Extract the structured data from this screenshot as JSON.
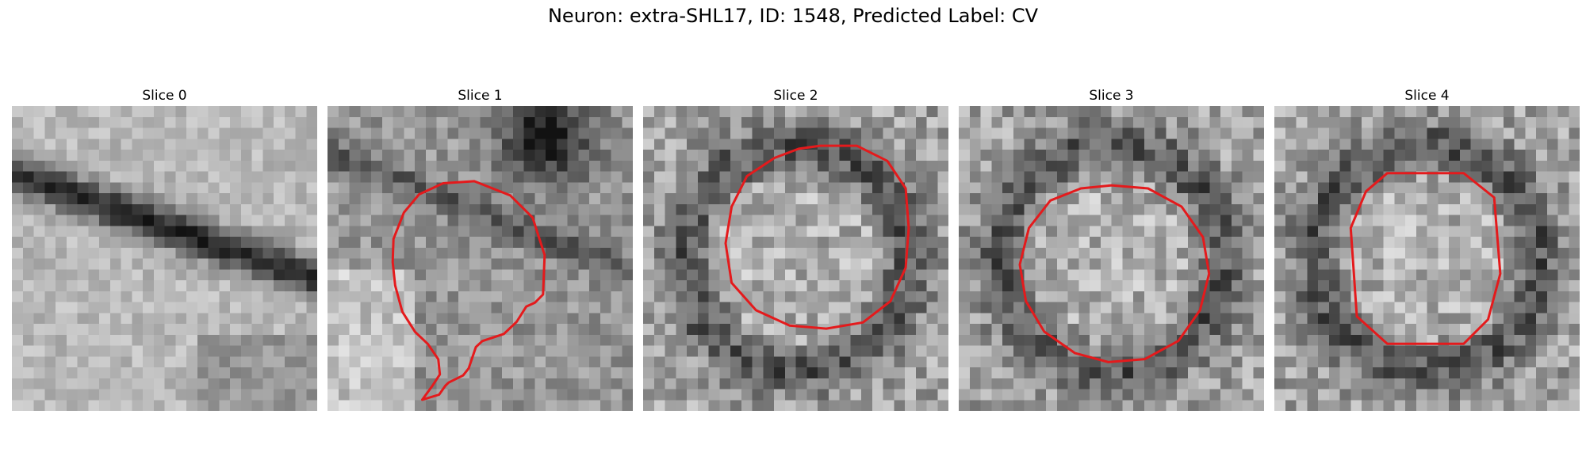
{
  "figure": {
    "title": "Neuron: extra-SHL17, ID: 1548, Predicted Label: CV"
  },
  "colors": {
    "contour": "#e41a1c",
    "background": "#ffffff"
  },
  "panels": [
    {
      "title": "Slice 0",
      "texture": "membrane-diagonal",
      "contour": []
    },
    {
      "title": "Slice 1",
      "texture": "textured-dark-top",
      "contour": [
        [
          0.236,
          0.451
        ],
        [
          0.257,
          0.446
        ],
        [
          0.265,
          0.437
        ],
        [
          0.269,
          0.434
        ],
        [
          0.287,
          0.427
        ],
        [
          0.294,
          0.42
        ],
        [
          0.303,
          0.399
        ],
        [
          0.311,
          0.393
        ],
        [
          0.338,
          0.386
        ],
        [
          0.354,
          0.374
        ],
        [
          0.366,
          0.359
        ],
        [
          0.377,
          0.355
        ],
        [
          0.387,
          0.347
        ],
        [
          0.389,
          0.308
        ],
        [
          0.374,
          0.271
        ],
        [
          0.346,
          0.249
        ],
        [
          0.301,
          0.235
        ],
        [
          0.262,
          0.237
        ],
        [
          0.232,
          0.248
        ],
        [
          0.213,
          0.266
        ],
        [
          0.2,
          0.292
        ],
        [
          0.199,
          0.315
        ],
        [
          0.202,
          0.338
        ],
        [
          0.211,
          0.364
        ],
        [
          0.227,
          0.384
        ],
        [
          0.243,
          0.396
        ],
        [
          0.256,
          0.411
        ],
        [
          0.258,
          0.426
        ],
        [
          0.248,
          0.438
        ]
      ]
    },
    {
      "title": "Slice 2",
      "texture": "granular-ring",
      "contour": [
        [
          0.58,
          0.13
        ],
        [
          0.7,
          0.13
        ],
        [
          0.8,
          0.18
        ],
        [
          0.86,
          0.27
        ],
        [
          0.87,
          0.4
        ],
        [
          0.86,
          0.53
        ],
        [
          0.81,
          0.64
        ],
        [
          0.72,
          0.71
        ],
        [
          0.6,
          0.73
        ],
        [
          0.48,
          0.72
        ],
        [
          0.37,
          0.67
        ],
        [
          0.29,
          0.58
        ],
        [
          0.27,
          0.45
        ],
        [
          0.29,
          0.33
        ],
        [
          0.34,
          0.23
        ],
        [
          0.43,
          0.17
        ],
        [
          0.51,
          0.14
        ]
      ]
    },
    {
      "title": "Slice 3",
      "texture": "granular-ring",
      "contour": [
        [
          0.5,
          0.26
        ],
        [
          0.62,
          0.27
        ],
        [
          0.73,
          0.33
        ],
        [
          0.8,
          0.43
        ],
        [
          0.82,
          0.55
        ],
        [
          0.79,
          0.67
        ],
        [
          0.72,
          0.77
        ],
        [
          0.61,
          0.83
        ],
        [
          0.49,
          0.84
        ],
        [
          0.38,
          0.81
        ],
        [
          0.28,
          0.74
        ],
        [
          0.22,
          0.64
        ],
        [
          0.2,
          0.52
        ],
        [
          0.23,
          0.4
        ],
        [
          0.3,
          0.31
        ],
        [
          0.4,
          0.27
        ]
      ]
    },
    {
      "title": "Slice 4",
      "texture": "granular-ring",
      "contour": [
        [
          0.37,
          0.22
        ],
        [
          0.62,
          0.22
        ],
        [
          0.72,
          0.3
        ],
        [
          0.74,
          0.55
        ],
        [
          0.7,
          0.7
        ],
        [
          0.62,
          0.78
        ],
        [
          0.37,
          0.78
        ],
        [
          0.27,
          0.69
        ],
        [
          0.25,
          0.4
        ],
        [
          0.3,
          0.28
        ]
      ]
    }
  ]
}
